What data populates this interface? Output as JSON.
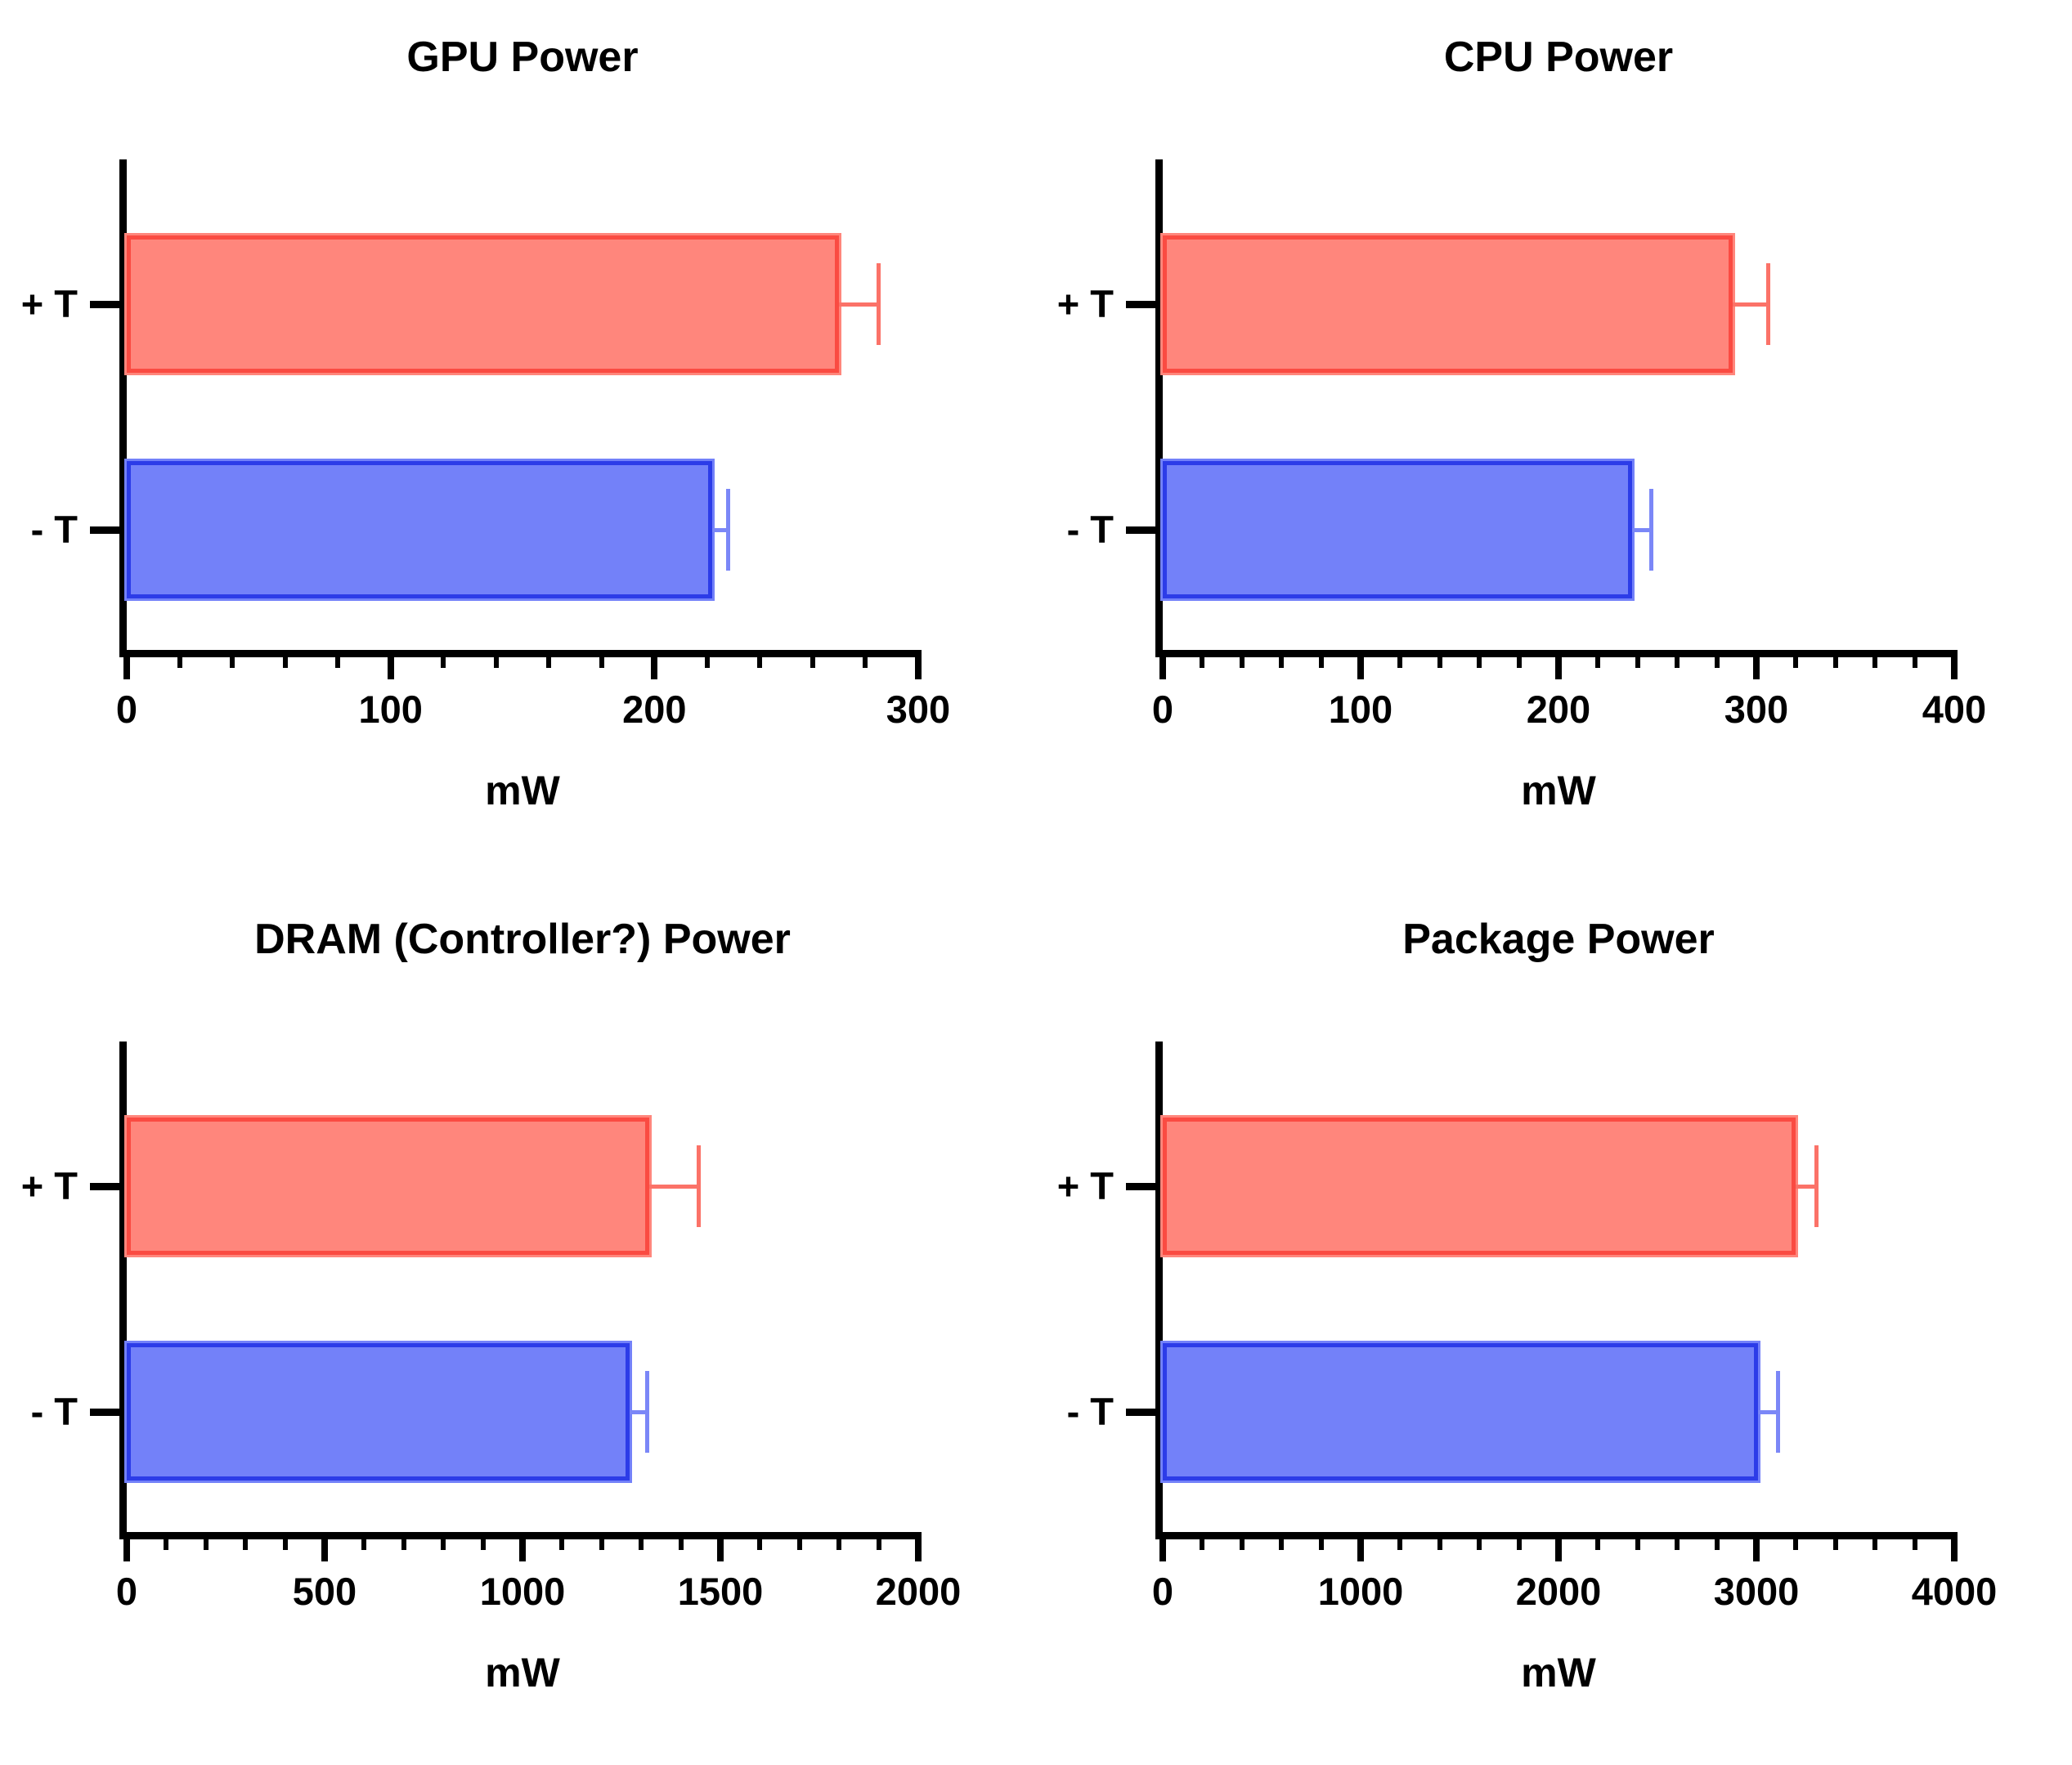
{
  "figure": {
    "unit_label": "mW",
    "categories": [
      "+ T",
      "- T"
    ],
    "colors": {
      "axis": "#000000",
      "series": [
        {
          "name": "+ T",
          "fill": "#FF867C",
          "border": "#FA4B42",
          "error": "#FB7268"
        },
        {
          "name": "- T",
          "fill": "#7381F9",
          "border": "#2C3CE8",
          "error": "#7B87F7"
        }
      ]
    }
  },
  "chart_data": [
    {
      "type": "bar",
      "orientation": "horizontal",
      "title": "GPU Power",
      "xlabel": "mW",
      "categories": [
        "+ T",
        "- T"
      ],
      "values": [
        270,
        222
      ],
      "errors_plus": [
        15,
        6
      ],
      "xlim": [
        0,
        300
      ],
      "x_major_ticks": [
        0,
        100,
        200,
        300
      ],
      "x_minor_step": 20,
      "grid": "off",
      "legend": "none"
    },
    {
      "type": "bar",
      "orientation": "horizontal",
      "title": "CPU Power",
      "xlabel": "mW",
      "categories": [
        "+ T",
        "- T"
      ],
      "values": [
        288,
        237
      ],
      "errors_plus": [
        18,
        10
      ],
      "xlim": [
        0,
        400
      ],
      "x_major_ticks": [
        0,
        100,
        200,
        300,
        400
      ],
      "x_minor_step": 20,
      "grid": "off",
      "legend": "none"
    },
    {
      "type": "bar",
      "orientation": "horizontal",
      "title": "DRAM (Controller?) Power",
      "xlabel": "mW",
      "categories": [
        "+ T",
        "- T"
      ],
      "values": [
        1320,
        1270
      ],
      "errors_plus": [
        125,
        45
      ],
      "xlim": [
        0,
        2000
      ],
      "x_major_ticks": [
        0,
        500,
        1000,
        1500,
        2000
      ],
      "x_minor_step": 100,
      "grid": "off",
      "legend": "none"
    },
    {
      "type": "bar",
      "orientation": "horizontal",
      "title": "Package Power",
      "xlabel": "mW",
      "categories": [
        "+ T",
        "- T"
      ],
      "values": [
        3200,
        3010
      ],
      "errors_plus": [
        105,
        100
      ],
      "xlim": [
        0,
        4000
      ],
      "x_major_ticks": [
        0,
        1000,
        2000,
        3000,
        4000
      ],
      "x_minor_step": 200,
      "grid": "off",
      "legend": "none"
    }
  ]
}
